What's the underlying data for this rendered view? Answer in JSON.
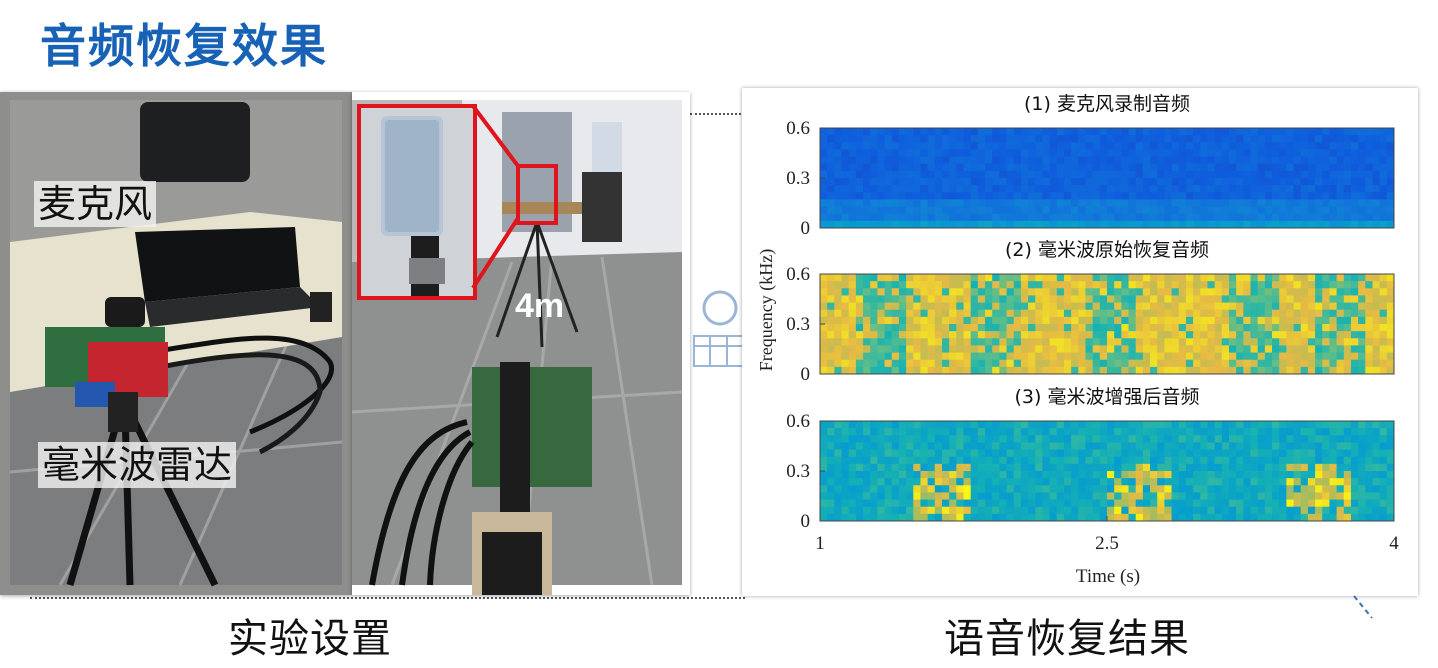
{
  "slide": {
    "title": "音频恢复效果",
    "left_caption": "实验设置",
    "right_caption": "语音恢复结果"
  },
  "photos": {
    "setup": {
      "mic_label": "麦克风",
      "radar_label": "毫米波雷达"
    },
    "distance": {
      "label": "4m"
    }
  },
  "colors": {
    "title": "#1761b7",
    "highlight_red": "#e0141c"
  },
  "chart_data": {
    "type": "heatmap",
    "ylabel": "Frequency (kHz)",
    "xlabel": "Time (s)",
    "xlim": [
      1,
      4
    ],
    "xticks": [
      "1",
      "2.5",
      "4"
    ],
    "ylim": [
      0,
      0.6
    ],
    "yticks": [
      "0",
      "0.3",
      "0.6"
    ],
    "panels": [
      {
        "title": "(1) 麦克风录制音频",
        "colormap": "parula-low"
      },
      {
        "title": "(2) 毫米波原始恢复音频",
        "colormap": "parula-high"
      },
      {
        "title": "(3) 毫米波增强后音频",
        "colormap": "parula-mid"
      }
    ]
  }
}
